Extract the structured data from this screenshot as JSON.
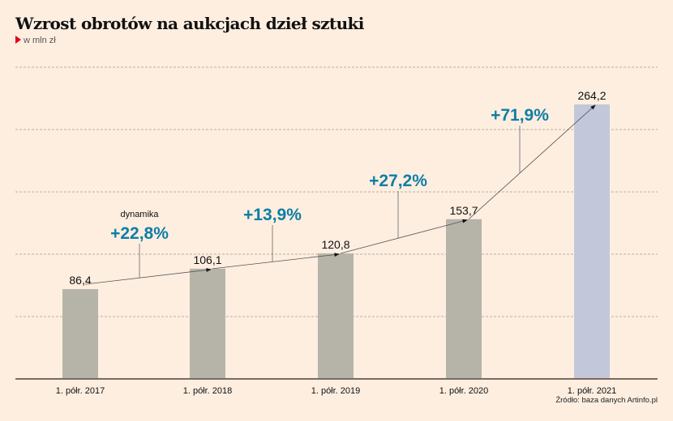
{
  "chart_data": {
    "type": "bar",
    "title": "Wzrost obrotów na aukcjach dzieł sztuki",
    "ylabel": "w mln zł",
    "categories": [
      "1. półr. 2017",
      "1. półr. 2018",
      "1. półr. 2019",
      "1. półr. 2020",
      "1. półr. 2021"
    ],
    "values": [
      86.4,
      106.1,
      120.8,
      153.7,
      264.2
    ],
    "value_labels": [
      "86,4",
      "106,1",
      "120,8",
      "153,7",
      "264,2"
    ],
    "growth_labels": [
      "+22,8%",
      "+13,9%",
      "+27,2%",
      "+71,9%"
    ],
    "growth_caption": "dynamika",
    "ylim": [
      0,
      300
    ],
    "grid_step": 60,
    "grid": true,
    "source": "Źródło: baza danych Artinfo.pl",
    "colors": {
      "bar": "#b6b4a9",
      "highlight": "#c2c8d9",
      "growth": "#0e7ea6",
      "axis": "#7a6a60"
    }
  }
}
